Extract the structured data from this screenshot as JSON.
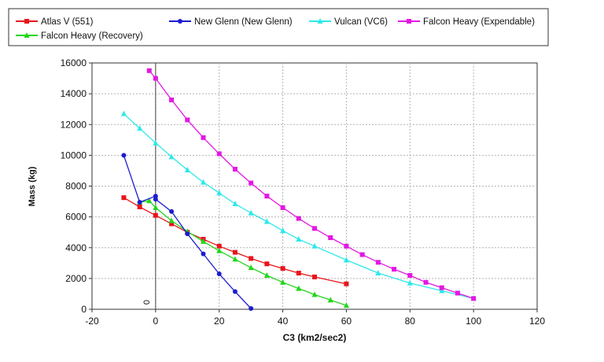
{
  "chart_data": {
    "type": "line",
    "title": "",
    "xlabel": "C3 (km2/sec2)",
    "ylabel": "Mass (kg)",
    "xlim": [
      -20,
      120
    ],
    "ylim": [
      0,
      16000
    ],
    "x_ticks": [
      -20,
      0,
      20,
      40,
      60,
      80,
      100,
      120
    ],
    "y_ticks": [
      0,
      2000,
      4000,
      6000,
      8000,
      10000,
      12000,
      14000,
      16000
    ],
    "grid": true,
    "legend_position": "top",
    "annotation": "0",
    "series": [
      {
        "name": "Atlas V (551)",
        "color": "#e8151c",
        "marker": "square",
        "x": [
          -10,
          -5,
          0,
          5,
          10,
          15,
          20,
          25,
          30,
          35,
          40,
          45,
          50,
          60
        ],
        "y": [
          7250,
          6650,
          6100,
          5550,
          5000,
          4550,
          4100,
          3700,
          3300,
          2950,
          2650,
          2350,
          2100,
          1650
        ]
      },
      {
        "name": "Falcon Heavy (Recovery)",
        "color": "#22d61b",
        "marker": "triangle",
        "x": [
          -5,
          -2,
          0,
          5,
          10,
          15,
          20,
          25,
          30,
          35,
          40,
          45,
          50,
          55,
          60
        ],
        "y": [
          6950,
          7050,
          6600,
          5750,
          5050,
          4400,
          3800,
          3250,
          2700,
          2200,
          1750,
          1350,
          950,
          600,
          250
        ]
      },
      {
        "name": "New Glenn (New Glenn)",
        "color": "#1c1cd0",
        "marker": "circle",
        "x": [
          -10,
          -5,
          0,
          0,
          5,
          10,
          15,
          20,
          25,
          30
        ],
        "y": [
          10000,
          6950,
          7350,
          7150,
          6350,
          4900,
          3600,
          2300,
          1150,
          50
        ]
      },
      {
        "name": "Vulcan (VC6)",
        "color": "#2ee8ea",
        "marker": "triangle",
        "x": [
          -10,
          -5,
          0,
          5,
          10,
          15,
          20,
          25,
          30,
          35,
          40,
          45,
          50,
          60,
          70,
          80,
          90,
          100
        ],
        "y": [
          12700,
          11750,
          10800,
          9900,
          9050,
          8250,
          7550,
          6850,
          6250,
          5700,
          5100,
          4550,
          4100,
          3200,
          2350,
          1700,
          1200,
          700
        ]
      },
      {
        "name": "Falcon Heavy (Expendable)",
        "color": "#e318e3",
        "marker": "square",
        "x": [
          -2,
          0,
          5,
          10,
          15,
          20,
          25,
          30,
          35,
          40,
          45,
          50,
          55,
          60,
          65,
          70,
          75,
          80,
          85,
          90,
          95,
          100
        ],
        "y": [
          15500,
          15000,
          13600,
          12300,
          11150,
          10100,
          9100,
          8200,
          7350,
          6600,
          5900,
          5250,
          4650,
          4100,
          3550,
          3050,
          2600,
          2200,
          1750,
          1400,
          1050,
          700
        ]
      }
    ]
  }
}
